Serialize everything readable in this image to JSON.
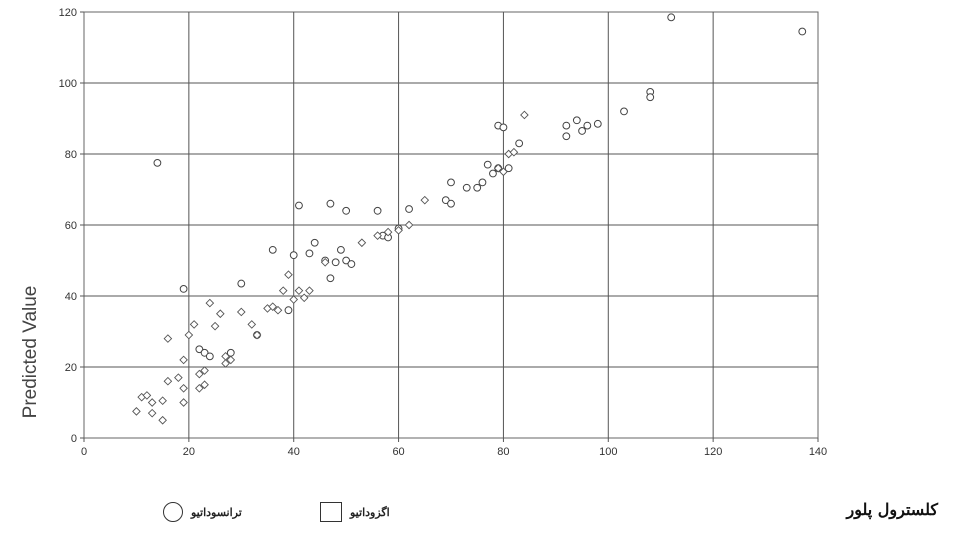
{
  "chart_data": {
    "type": "scatter",
    "title": "",
    "xlabel": "کلسترول پلور",
    "ylabel": "Predicted Value",
    "xlim": [
      0,
      140
    ],
    "ylim": [
      0,
      120
    ],
    "xticks": [
      0,
      20,
      40,
      60,
      80,
      100,
      120,
      140
    ],
    "yticks": [
      0,
      20,
      40,
      60,
      80,
      100,
      120
    ],
    "grid": true,
    "legend_position": "bottom",
    "series": [
      {
        "name": "ترانسوداتیو",
        "marker": "circle",
        "points": [
          [
            14,
            77.5
          ],
          [
            19,
            42
          ],
          [
            22,
            25
          ],
          [
            23,
            24
          ],
          [
            24,
            23
          ],
          [
            28,
            24
          ],
          [
            30,
            43.5
          ],
          [
            33,
            29
          ],
          [
            36,
            53
          ],
          [
            39,
            36
          ],
          [
            40,
            51.5
          ],
          [
            41,
            65.5
          ],
          [
            43,
            52
          ],
          [
            44,
            55
          ],
          [
            46,
            50
          ],
          [
            47,
            66
          ],
          [
            47,
            45
          ],
          [
            48,
            49.5
          ],
          [
            49,
            53
          ],
          [
            50,
            64
          ],
          [
            50,
            50
          ],
          [
            51,
            49
          ],
          [
            56,
            64
          ],
          [
            57,
            57
          ],
          [
            58,
            56.5
          ],
          [
            60,
            59
          ],
          [
            62,
            64.5
          ],
          [
            69,
            67
          ],
          [
            70,
            72
          ],
          [
            70,
            66
          ],
          [
            73,
            70.5
          ],
          [
            75,
            70.5
          ],
          [
            76,
            72
          ],
          [
            77,
            77
          ],
          [
            78,
            74.5
          ],
          [
            79,
            88
          ],
          [
            79,
            76
          ],
          [
            80,
            87.5
          ],
          [
            81,
            76
          ],
          [
            83,
            83
          ],
          [
            92,
            88
          ],
          [
            92,
            85
          ],
          [
            94,
            89.5
          ],
          [
            95,
            86.5
          ],
          [
            96,
            88
          ],
          [
            98,
            88.5
          ],
          [
            103,
            92
          ],
          [
            108,
            97.5
          ],
          [
            108,
            96
          ],
          [
            112,
            118.5
          ],
          [
            137,
            114.5
          ]
        ]
      },
      {
        "name": "اگزوداتیو",
        "marker": "square",
        "points": [
          [
            10,
            7.5
          ],
          [
            11,
            11.5
          ],
          [
            12,
            12
          ],
          [
            13,
            7
          ],
          [
            13,
            10
          ],
          [
            15,
            5
          ],
          [
            15,
            10.5
          ],
          [
            16,
            16
          ],
          [
            16,
            28
          ],
          [
            18,
            17
          ],
          [
            19,
            10
          ],
          [
            19,
            14
          ],
          [
            19,
            22
          ],
          [
            20,
            29
          ],
          [
            21,
            32
          ],
          [
            22,
            14
          ],
          [
            22,
            18
          ],
          [
            23,
            15
          ],
          [
            23,
            19
          ],
          [
            24,
            38
          ],
          [
            25,
            31.5
          ],
          [
            26,
            35
          ],
          [
            27,
            21
          ],
          [
            27,
            23
          ],
          [
            28,
            22
          ],
          [
            30,
            35.5
          ],
          [
            32,
            32
          ],
          [
            33,
            29
          ],
          [
            35,
            36.5
          ],
          [
            36,
            37
          ],
          [
            37,
            36
          ],
          [
            38,
            41.5
          ],
          [
            39,
            46
          ],
          [
            40,
            39
          ],
          [
            41,
            41.5
          ],
          [
            42,
            39.5
          ],
          [
            43,
            41.5
          ],
          [
            46,
            49.5
          ],
          [
            53,
            55
          ],
          [
            56,
            57
          ],
          [
            58,
            58
          ],
          [
            60,
            58.5
          ],
          [
            62,
            60
          ],
          [
            65,
            67
          ],
          [
            79,
            76
          ],
          [
            80,
            75
          ],
          [
            81,
            80
          ],
          [
            82,
            80.5
          ],
          [
            84,
            91
          ]
        ]
      }
    ]
  }
}
